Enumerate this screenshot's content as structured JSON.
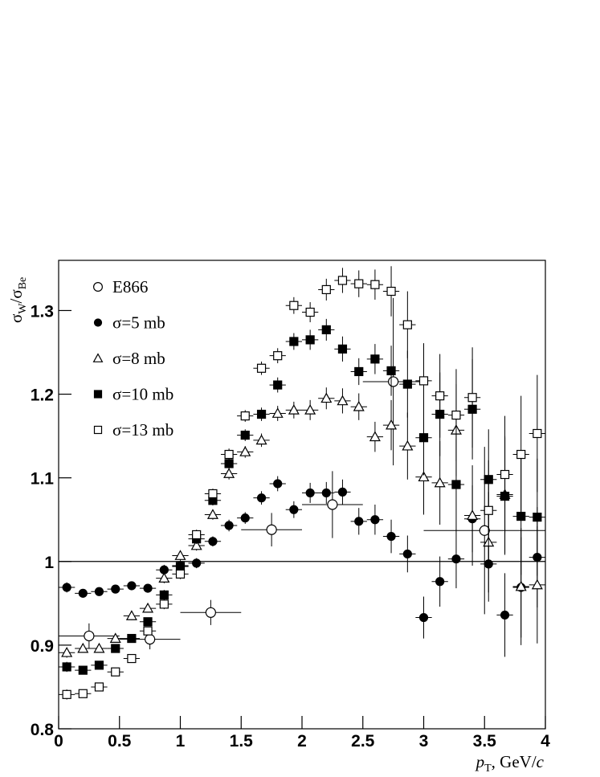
{
  "chart_data": {
    "type": "scatter",
    "xlim": [
      0,
      4
    ],
    "ylim": [
      0.8,
      1.36
    ],
    "xticks": [
      0,
      0.5,
      1,
      1.5,
      2,
      2.5,
      3,
      3.5,
      4
    ],
    "yticks": [
      0.8,
      0.9,
      1,
      1.1,
      1.2,
      1.3
    ],
    "hline": 1,
    "legend": "upper left",
    "x_label": [
      "p",
      "T",
      ", GeV/",
      "c"
    ],
    "y_label": [
      "σ",
      "W",
      "/σ",
      "Be"
    ],
    "series": [
      {
        "name": "E866",
        "marker": "open-circle",
        "color": "#000000",
        "x": [
          0.25,
          0.75,
          1.25,
          1.75,
          2.25,
          2.75,
          3.5
        ],
        "values": [
          0.911,
          0.907,
          0.939,
          1.038,
          1.068,
          1.215,
          1.037
        ],
        "xerr": [
          0.25,
          0.25,
          0.25,
          0.25,
          0.25,
          0.25,
          0.5
        ],
        "yerr": [
          0.015,
          0.012,
          0.015,
          0.02,
          0.04,
          0.1,
          0.1
        ]
      },
      {
        "name": "σ=5 mb",
        "marker": "filled-circle",
        "color": "#000000",
        "x": [
          0.067,
          0.2,
          0.333,
          0.467,
          0.6,
          0.733,
          0.867,
          1,
          1.133,
          1.267,
          1.4,
          1.533,
          1.667,
          1.8,
          1.933,
          2.067,
          2.2,
          2.333,
          2.467,
          2.6,
          2.733,
          2.867,
          3,
          3.133,
          3.267,
          3.4,
          3.533,
          3.667,
          3.8,
          3.933
        ],
        "values": [
          0.969,
          0.962,
          0.964,
          0.967,
          0.971,
          0.968,
          0.99,
          0.995,
          0.998,
          1.024,
          1.043,
          1.052,
          1.076,
          1.093,
          1.062,
          1.082,
          1.082,
          1.083,
          1.048,
          1.05,
          1.03,
          1.009,
          0.933,
          0.976,
          1.003,
          1.051,
          0.997,
          0.936,
          0.969,
          1.005
        ],
        "xerr": [
          0.067,
          0.067,
          0.067,
          0.067,
          0.067,
          0.067,
          0.067,
          0.067,
          0.067,
          0.067,
          0.067,
          0.067,
          0.067,
          0.067,
          0.067,
          0.067,
          0.067,
          0.067,
          0.067,
          0.067,
          0.067,
          0.067,
          0.067,
          0.067,
          0.067,
          0.067,
          0.067,
          0.067,
          0.067,
          0.067
        ],
        "yerr": [
          0.006,
          0.005,
          0.005,
          0.005,
          0.005,
          0.005,
          0.006,
          0.006,
          0.006,
          0.006,
          0.007,
          0.007,
          0.008,
          0.009,
          0.01,
          0.012,
          0.013,
          0.015,
          0.016,
          0.018,
          0.02,
          0.022,
          0.025,
          0.03,
          0.035,
          0.04,
          0.045,
          0.05,
          0.06,
          0.06
        ]
      },
      {
        "name": "σ=8 mb",
        "marker": "open-triangle",
        "color": "#000000",
        "x": [
          0.067,
          0.2,
          0.333,
          0.467,
          0.6,
          0.733,
          0.867,
          1,
          1.133,
          1.267,
          1.4,
          1.533,
          1.667,
          1.8,
          1.933,
          2.067,
          2.2,
          2.333,
          2.467,
          2.6,
          2.733,
          2.867,
          3,
          3.133,
          3.267,
          3.4,
          3.533,
          3.667,
          3.8,
          3.933
        ],
        "values": [
          0.891,
          0.896,
          0.896,
          0.908,
          0.935,
          0.944,
          0.98,
          1.007,
          1.019,
          1.056,
          1.105,
          1.131,
          1.145,
          1.177,
          1.181,
          1.181,
          1.195,
          1.192,
          1.185,
          1.149,
          1.163,
          1.138,
          1.101,
          1.094,
          1.157,
          1.055,
          1.023,
          1.08,
          0.97,
          0.972
        ],
        "xerr": [
          0.067,
          0.067,
          0.067,
          0.067,
          0.067,
          0.067,
          0.067,
          0.067,
          0.067,
          0.067,
          0.067,
          0.067,
          0.067,
          0.067,
          0.067,
          0.067,
          0.067,
          0.067,
          0.067,
          0.067,
          0.067,
          0.067,
          0.067,
          0.067,
          0.067,
          0.067,
          0.067,
          0.067,
          0.067,
          0.067
        ],
        "yerr": [
          0.006,
          0.005,
          0.005,
          0.005,
          0.005,
          0.005,
          0.006,
          0.006,
          0.006,
          0.006,
          0.007,
          0.007,
          0.008,
          0.009,
          0.01,
          0.012,
          0.013,
          0.015,
          0.016,
          0.018,
          0.03,
          0.04,
          0.045,
          0.05,
          0.055,
          0.06,
          0.06,
          0.07,
          0.07,
          0.07
        ]
      },
      {
        "name": "σ=10 mb",
        "marker": "filled-square",
        "color": "#000000",
        "x": [
          0.067,
          0.2,
          0.333,
          0.467,
          0.6,
          0.733,
          0.867,
          1,
          1.133,
          1.267,
          1.4,
          1.533,
          1.667,
          1.8,
          1.933,
          2.067,
          2.2,
          2.333,
          2.467,
          2.6,
          2.733,
          2.867,
          3,
          3.133,
          3.267,
          3.4,
          3.533,
          3.667,
          3.8,
          3.933
        ],
        "values": [
          0.874,
          0.87,
          0.876,
          0.896,
          0.908,
          0.928,
          0.96,
          0.994,
          1.027,
          1.073,
          1.117,
          1.151,
          1.176,
          1.211,
          1.263,
          1.265,
          1.277,
          1.254,
          1.227,
          1.242,
          1.228,
          1.212,
          1.148,
          1.176,
          1.092,
          1.182,
          1.098,
          1.078,
          1.054,
          1.053
        ],
        "xerr": [
          0.067,
          0.067,
          0.067,
          0.067,
          0.067,
          0.067,
          0.067,
          0.067,
          0.067,
          0.067,
          0.067,
          0.067,
          0.067,
          0.067,
          0.067,
          0.067,
          0.067,
          0.067,
          0.067,
          0.067,
          0.067,
          0.067,
          0.067,
          0.067,
          0.067,
          0.067,
          0.067,
          0.067,
          0.067,
          0.067
        ],
        "yerr": [
          0.006,
          0.005,
          0.005,
          0.005,
          0.005,
          0.005,
          0.006,
          0.006,
          0.006,
          0.006,
          0.007,
          0.007,
          0.008,
          0.009,
          0.01,
          0.012,
          0.013,
          0.015,
          0.016,
          0.018,
          0.03,
          0.04,
          0.045,
          0.05,
          0.055,
          0.06,
          0.06,
          0.07,
          0.07,
          0.07
        ]
      },
      {
        "name": "σ=13 mb",
        "marker": "open-square",
        "color": "#000000",
        "x": [
          0.067,
          0.2,
          0.333,
          0.467,
          0.6,
          0.733,
          0.867,
          1,
          1.133,
          1.267,
          1.4,
          1.533,
          1.667,
          1.8,
          1.933,
          2.067,
          2.2,
          2.333,
          2.467,
          2.6,
          2.733,
          2.867,
          3,
          3.133,
          3.267,
          3.4,
          3.533,
          3.667,
          3.8,
          3.933
        ],
        "values": [
          0.841,
          0.842,
          0.85,
          0.868,
          0.884,
          0.917,
          0.949,
          0.985,
          1.032,
          1.081,
          1.128,
          1.174,
          1.231,
          1.246,
          1.306,
          1.298,
          1.325,
          1.336,
          1.332,
          1.331,
          1.323,
          1.283,
          1.216,
          1.198,
          1.175,
          1.196,
          1.061,
          1.104,
          1.128,
          1.153
        ],
        "xerr": [
          0.067,
          0.067,
          0.067,
          0.067,
          0.067,
          0.067,
          0.067,
          0.067,
          0.067,
          0.067,
          0.067,
          0.067,
          0.067,
          0.067,
          0.067,
          0.067,
          0.067,
          0.067,
          0.067,
          0.067,
          0.067,
          0.067,
          0.067,
          0.067,
          0.067,
          0.067,
          0.067,
          0.067,
          0.067,
          0.067
        ],
        "yerr": [
          0.006,
          0.005,
          0.005,
          0.005,
          0.005,
          0.005,
          0.006,
          0.006,
          0.006,
          0.006,
          0.007,
          0.007,
          0.008,
          0.009,
          0.01,
          0.012,
          0.013,
          0.015,
          0.016,
          0.018,
          0.03,
          0.04,
          0.045,
          0.05,
          0.055,
          0.06,
          0.06,
          0.07,
          0.07,
          0.07
        ]
      }
    ]
  }
}
